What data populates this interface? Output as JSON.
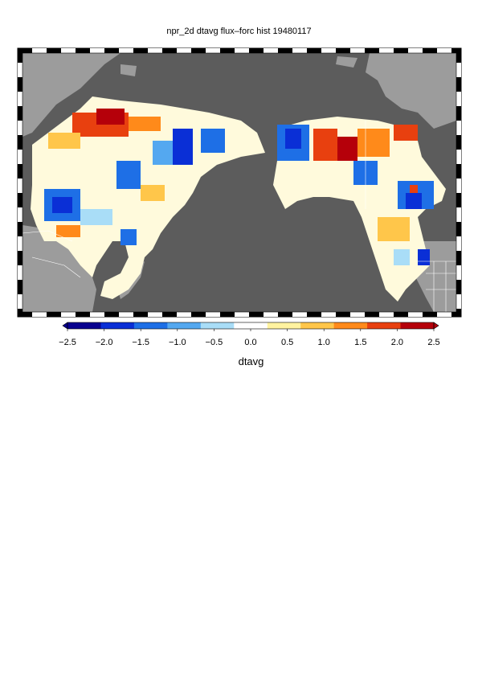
{
  "title": "npr_2d dtavg flux–forc hist 19480117",
  "colorbar": {
    "label": "dtavg",
    "min": -2.5,
    "max": 2.5,
    "ticks": [
      "−2.5",
      "−2.0",
      "−1.5",
      "−1.0",
      "−0.5",
      "0.0",
      "0.5",
      "1.0",
      "1.5",
      "2.0",
      "2.5"
    ],
    "colors": [
      "#08008f",
      "#0a2fd6",
      "#1e6fe6",
      "#54a8f0",
      "#a9ddf7",
      "#ffffff",
      "#fff3a0",
      "#ffc64a",
      "#ff8a1a",
      "#e8400f",
      "#b5000a"
    ],
    "extend": "both"
  },
  "map": {
    "projection": "North Pacific Rim, lat-lon",
    "ocean_color": "#5c5c5c",
    "land_color": "#9c9c9c",
    "border_color": "#ffffff",
    "frame": "black-white checkered"
  }
}
